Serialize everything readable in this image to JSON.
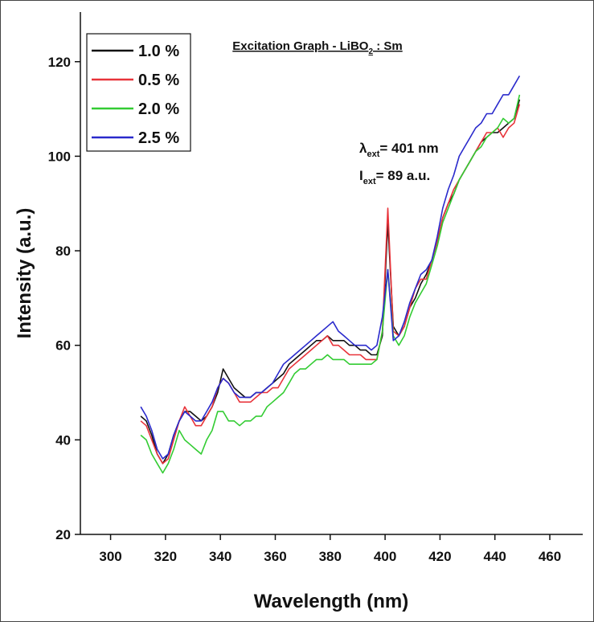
{
  "chart_data": {
    "type": "line",
    "title": {
      "main": "Excitation Graph - LiBO",
      "sub": "2",
      "rest": " : Sm"
    },
    "x_label": "Wavelength (nm)",
    "y_label": "Intensity (a.u.)",
    "annotations": [
      {
        "main": "λ",
        "sub": "ext",
        "rest": "= 401 nm"
      },
      {
        "main": "I",
        "sub": "ext",
        "rest": "= 89 a.u."
      }
    ],
    "x": [
      311,
      313,
      315,
      317,
      319,
      321,
      323,
      325,
      327,
      329,
      331,
      333,
      335,
      337,
      339,
      341,
      343,
      345,
      347,
      349,
      351,
      353,
      355,
      357,
      359,
      361,
      363,
      365,
      367,
      369,
      371,
      373,
      375,
      377,
      379,
      381,
      383,
      385,
      387,
      389,
      391,
      393,
      395,
      397,
      399,
      401,
      403,
      405,
      407,
      409,
      411,
      413,
      415,
      417,
      419,
      421,
      423,
      425,
      427,
      429,
      431,
      433,
      435,
      437,
      439,
      441,
      443,
      445,
      447,
      449
    ],
    "series": [
      {
        "name": "1.0 %",
        "color": "#111111",
        "values": [
          45,
          44,
          41,
          37,
          35,
          37,
          41,
          44,
          46,
          46,
          45,
          44,
          45,
          47,
          50,
          55,
          53,
          51,
          50,
          49,
          49,
          50,
          50,
          51,
          52,
          53,
          54,
          56,
          57,
          58,
          59,
          60,
          61,
          61,
          62,
          61,
          61,
          61,
          60,
          60,
          59,
          59,
          58,
          58,
          62,
          86,
          64,
          62,
          64,
          68,
          70,
          73,
          75,
          78,
          82,
          87,
          90,
          92,
          95,
          97,
          99,
          101,
          103,
          104,
          105,
          105,
          106,
          107,
          108,
          112
        ]
      },
      {
        "name": "0.5 %",
        "color": "#e8333a",
        "values": [
          44,
          43,
          40,
          37,
          35,
          36,
          40,
          44,
          47,
          45,
          43,
          43,
          45,
          47,
          51,
          53,
          52,
          50,
          48,
          48,
          48,
          49,
          50,
          50,
          51,
          51,
          53,
          55,
          56,
          57,
          58,
          59,
          60,
          61,
          62,
          60,
          60,
          59,
          58,
          58,
          58,
          57,
          57,
          57,
          63,
          89,
          63,
          62,
          64,
          68,
          72,
          74,
          74,
          78,
          82,
          87,
          90,
          93,
          95,
          97,
          99,
          101,
          103,
          105,
          105,
          106,
          104,
          106,
          107,
          111
        ]
      },
      {
        "name": "2.0 %",
        "color": "#33cc33",
        "values": [
          41,
          40,
          37,
          35,
          33,
          35,
          38,
          42,
          40,
          39,
          38,
          37,
          40,
          42,
          46,
          46,
          44,
          44,
          43,
          44,
          44,
          45,
          45,
          47,
          48,
          49,
          50,
          52,
          54,
          55,
          55,
          56,
          57,
          57,
          58,
          57,
          57,
          57,
          56,
          56,
          56,
          56,
          56,
          57,
          63,
          76,
          62,
          60,
          62,
          66,
          69,
          71,
          73,
          77,
          81,
          86,
          89,
          92,
          95,
          97,
          99,
          101,
          102,
          104,
          105,
          106,
          108,
          107,
          108,
          113
        ]
      },
      {
        "name": "2.5 %",
        "color": "#2a2acc",
        "values": [
          47,
          45,
          42,
          38,
          36,
          37,
          41,
          44,
          46,
          45,
          44,
          44,
          46,
          48,
          51,
          53,
          52,
          50,
          49,
          49,
          49,
          50,
          50,
          51,
          52,
          54,
          56,
          57,
          58,
          59,
          60,
          61,
          62,
          63,
          64,
          65,
          63,
          62,
          61,
          60,
          60,
          60,
          59,
          60,
          66,
          76,
          61,
          62,
          65,
          69,
          72,
          75,
          76,
          78,
          83,
          89,
          93,
          96,
          100,
          102,
          104,
          106,
          107,
          109,
          109,
          111,
          113,
          113,
          115,
          117
        ]
      }
    ],
    "xlim": [
      289,
      472
    ],
    "ylim": [
      20,
      130.5
    ],
    "xticks": [
      300,
      320,
      340,
      360,
      380,
      400,
      420,
      440,
      460
    ],
    "yticks": [
      20,
      40,
      60,
      80,
      100,
      120
    ],
    "legend": "upper-left"
  }
}
